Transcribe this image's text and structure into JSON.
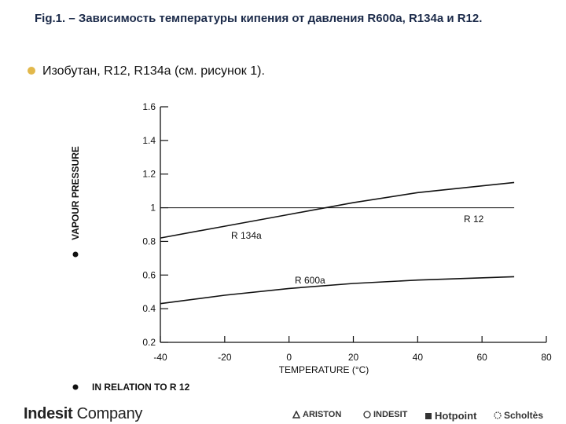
{
  "header": {
    "title": "Fig.1. – Зависимость температуры кипения от давления R600a, R134a и R12."
  },
  "bullet": {
    "text": "Изобутан, R12, R134a (см. рисунок 1)."
  },
  "chart_data": {
    "type": "line",
    "xlabel": "TEMPERATURE  (°C)",
    "ylabel": "VAPOUR PRESSURE",
    "note": "IN RELATION TO R 12",
    "xlim": [
      -40,
      80
    ],
    "ylim": [
      0.2,
      1.6
    ],
    "xticks": [
      -40,
      -20,
      0,
      20,
      40,
      60,
      80
    ],
    "yticks": [
      0.2,
      0.4,
      0.6,
      0.8,
      1,
      1.2,
      1.4,
      1.6
    ],
    "ytick_labels": [
      "0.2",
      "0.4",
      "0.6",
      "0.8",
      "1",
      "1.2",
      "1.4",
      "1.6"
    ],
    "series": [
      {
        "name": "R 12",
        "x": [
          -40,
          70
        ],
        "y": [
          1.0,
          1.0
        ]
      },
      {
        "name": "R 134a",
        "x": [
          -40,
          -20,
          0,
          20,
          40,
          70
        ],
        "y": [
          0.82,
          0.89,
          0.96,
          1.03,
          1.09,
          1.15
        ]
      },
      {
        "name": "R 600a",
        "x": [
          -40,
          -20,
          0,
          20,
          40,
          70
        ],
        "y": [
          0.43,
          0.48,
          0.52,
          0.55,
          0.57,
          0.59
        ]
      }
    ],
    "grid": false,
    "colors": {
      "line": "#111111"
    }
  },
  "footer": {
    "company_bold": "Indesit",
    "company_rest": " Company",
    "brands": [
      "ARISTON",
      "INDESIT",
      "Hotpoint",
      "Scholtès"
    ]
  }
}
